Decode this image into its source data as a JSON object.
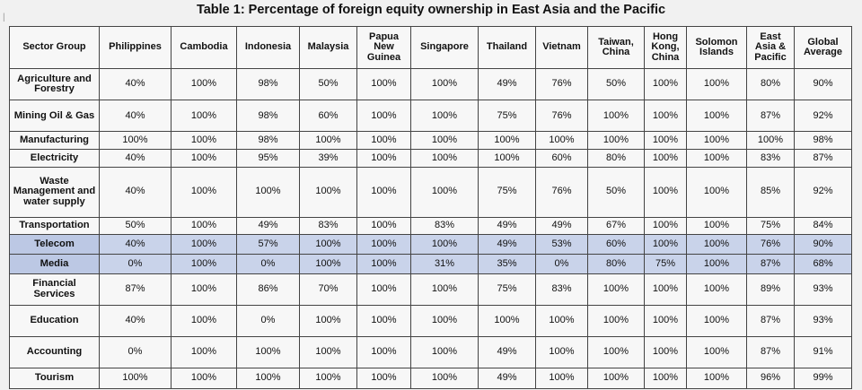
{
  "title": "Table 1: Percentage of foreign equity ownership in East Asia and the Pacific",
  "marker": "|",
  "columns": [
    "Sector Group",
    "Philippines",
    "Cambodia",
    "Indonesia",
    "Malaysia",
    "Papua New Guinea",
    "Singapore",
    "Thailand",
    "Vietnam",
    "Taiwan, China",
    "Hong Kong, China",
    "Solomon Islands",
    "East Asia & Pacific",
    "Global Average"
  ],
  "rows": [
    {
      "sector": "Agriculture and Forestry",
      "values": [
        "40%",
        "100%",
        "98%",
        "50%",
        "100%",
        "100%",
        "49%",
        "76%",
        "50%",
        "100%",
        "100%",
        "80%",
        "90%"
      ],
      "highlighted": false
    },
    {
      "sector": "Mining Oil & Gas",
      "values": [
        "40%",
        "100%",
        "98%",
        "60%",
        "100%",
        "100%",
        "75%",
        "76%",
        "100%",
        "100%",
        "100%",
        "87%",
        "92%"
      ],
      "highlighted": false
    },
    {
      "sector": "Manufacturing",
      "values": [
        "100%",
        "100%",
        "98%",
        "100%",
        "100%",
        "100%",
        "100%",
        "100%",
        "100%",
        "100%",
        "100%",
        "100%",
        "98%"
      ],
      "highlighted": false
    },
    {
      "sector": "Electricity",
      "values": [
        "40%",
        "100%",
        "95%",
        "39%",
        "100%",
        "100%",
        "100%",
        "60%",
        "80%",
        "100%",
        "100%",
        "83%",
        "87%"
      ],
      "highlighted": false
    },
    {
      "sector": "Waste Management and water supply",
      "values": [
        "40%",
        "100%",
        "100%",
        "100%",
        "100%",
        "100%",
        "75%",
        "76%",
        "50%",
        "100%",
        "100%",
        "85%",
        "92%"
      ],
      "highlighted": false
    },
    {
      "sector": "Transportation",
      "values": [
        "50%",
        "100%",
        "49%",
        "83%",
        "100%",
        "83%",
        "49%",
        "49%",
        "67%",
        "100%",
        "100%",
        "75%",
        "84%"
      ],
      "highlighted": false
    },
    {
      "sector": "Telecom",
      "values": [
        "40%",
        "100%",
        "57%",
        "100%",
        "100%",
        "100%",
        "49%",
        "53%",
        "60%",
        "100%",
        "100%",
        "76%",
        "90%"
      ],
      "highlighted": true
    },
    {
      "sector": "Media",
      "values": [
        "0%",
        "100%",
        "0%",
        "100%",
        "100%",
        "31%",
        "35%",
        "0%",
        "80%",
        "75%",
        "100%",
        "87%",
        "68%"
      ],
      "highlighted": true
    },
    {
      "sector": "Financial Services",
      "values": [
        "87%",
        "100%",
        "86%",
        "70%",
        "100%",
        "100%",
        "75%",
        "83%",
        "100%",
        "100%",
        "100%",
        "89%",
        "93%"
      ],
      "highlighted": false
    },
    {
      "sector": "Education",
      "values": [
        "40%",
        "100%",
        "0%",
        "100%",
        "100%",
        "100%",
        "100%",
        "100%",
        "100%",
        "100%",
        "100%",
        "87%",
        "93%"
      ],
      "highlighted": false
    },
    {
      "sector": "Accounting",
      "values": [
        "0%",
        "100%",
        "100%",
        "100%",
        "100%",
        "100%",
        "49%",
        "100%",
        "100%",
        "100%",
        "100%",
        "87%",
        "91%"
      ],
      "highlighted": false
    },
    {
      "sector": "Tourism",
      "values": [
        "100%",
        "100%",
        "100%",
        "100%",
        "100%",
        "100%",
        "49%",
        "100%",
        "100%",
        "100%",
        "100%",
        "96%",
        "99%"
      ],
      "highlighted": false
    }
  ],
  "colors": {
    "highlight_row": "#c9d3ea",
    "highlight_sector": "#bcc8e4",
    "cell_background": "#f7f7f7",
    "grid_line": "#444444"
  }
}
